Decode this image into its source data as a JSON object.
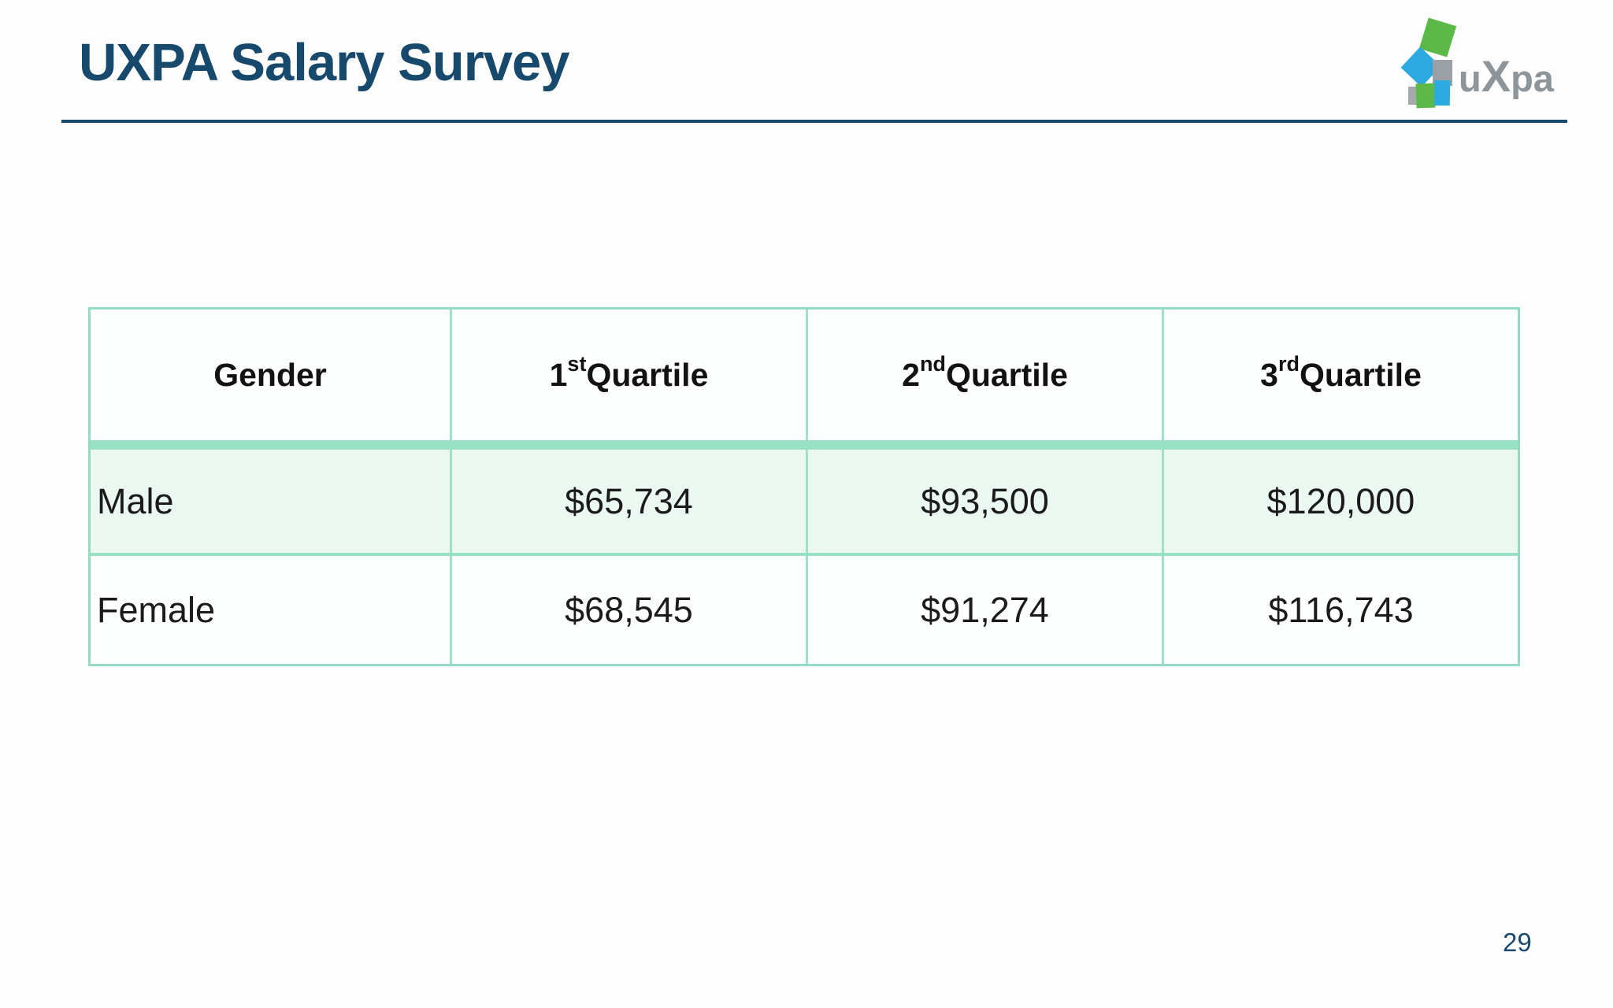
{
  "slide": {
    "title": "UXPA Salary Survey",
    "page_number": "29",
    "colors": {
      "title_navy": "#16496c",
      "table_border_teal": "#93dcc0",
      "header_band_teal": "#99e1c5",
      "male_row_mint": "#ebf8f2",
      "logo_green": "#5cb947",
      "logo_blue": "#2ca9df",
      "logo_gray": "#9ba0a4",
      "logo_text_gray": "#8e959a"
    }
  },
  "logo": {
    "name": "uxpa-logo",
    "text_left": "u",
    "text_x": "X",
    "text_right": "pa"
  },
  "table": {
    "headers": [
      {
        "base": "Gender",
        "sup": "",
        "rest": ""
      },
      {
        "base": "1",
        "sup": "st",
        "rest": " Quartile"
      },
      {
        "base": "2",
        "sup": "nd",
        "rest": " Quartile"
      },
      {
        "base": "3",
        "sup": "rd",
        "rest": " Quartile"
      }
    ],
    "rows": [
      {
        "gender": "Male",
        "q1": "$65,734",
        "q2": "$93,500",
        "q3": "$120,000"
      },
      {
        "gender": "Female",
        "q1": "$68,545",
        "q2": "$91,274",
        "q3": "$116,743"
      }
    ]
  },
  "chart_data": {
    "type": "table",
    "title": "UXPA Salary Survey",
    "columns": [
      "Gender",
      "1st Quartile",
      "2nd Quartile",
      "3rd Quartile"
    ],
    "rows": [
      [
        "Male",
        "$65,734",
        "$93,500",
        "$120,000"
      ],
      [
        "Female",
        "$68,545",
        "$91,274",
        "$116,743"
      ]
    ],
    "series": [
      {
        "name": "Male",
        "values": [
          65734,
          93500,
          120000
        ]
      },
      {
        "name": "Female",
        "values": [
          68545,
          91274,
          116743
        ]
      }
    ],
    "categories": [
      "1st Quartile",
      "2nd Quartile",
      "3rd Quartile"
    ]
  }
}
